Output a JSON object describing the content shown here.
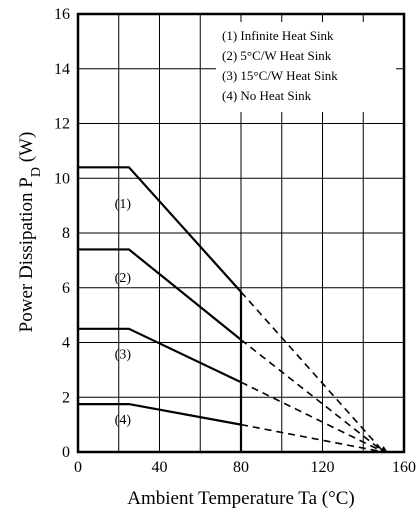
{
  "chart_data": {
    "type": "line",
    "xlabel": "Ambient Temperature  Ta (°C)",
    "ylabel_main": "Power Dissipation  P",
    "ylabel_sub": "D",
    "ylabel_unit": " (W)",
    "xlim": [
      0,
      160
    ],
    "ylim": [
      0,
      16
    ],
    "xticks": [
      0,
      40,
      80,
      120,
      160
    ],
    "yticks": [
      0,
      2,
      4,
      6,
      8,
      10,
      12,
      14,
      16
    ],
    "grid": true,
    "legend_position": "top-right",
    "legend": [
      "(1)  Infinite Heat Sink",
      "(2)  5°C/W Heat Sink",
      "(3)  15°C/W Heat Sink",
      "(4)  No Heat Sink"
    ],
    "series": [
      {
        "label": "(1)",
        "solid": [
          [
            0,
            10.4
          ],
          [
            25,
            10.4
          ],
          [
            80,
            5.85
          ]
        ],
        "dashed": [
          [
            80,
            5.85
          ],
          [
            150,
            0
          ]
        ],
        "label_at": [
          22,
          9.1
        ]
      },
      {
        "label": "(2)",
        "solid": [
          [
            0,
            7.4
          ],
          [
            25,
            7.4
          ],
          [
            80,
            4.1
          ]
        ],
        "dashed": [
          [
            80,
            4.1
          ],
          [
            150,
            0
          ]
        ],
        "label_at": [
          22,
          6.4
        ]
      },
      {
        "label": "(3)",
        "solid": [
          [
            0,
            4.5
          ],
          [
            25,
            4.5
          ],
          [
            80,
            2.55
          ]
        ],
        "dashed": [
          [
            80,
            2.55
          ],
          [
            150,
            0
          ]
        ],
        "label_at": [
          22,
          3.6
        ]
      },
      {
        "label": "(4)",
        "solid": [
          [
            0,
            1.75
          ],
          [
            25,
            1.75
          ],
          [
            80,
            1.0
          ]
        ],
        "dashed": [
          [
            80,
            1.0
          ],
          [
            150,
            0
          ]
        ],
        "label_at": [
          22,
          1.2
        ]
      }
    ],
    "vertical_marker_x": 80
  }
}
